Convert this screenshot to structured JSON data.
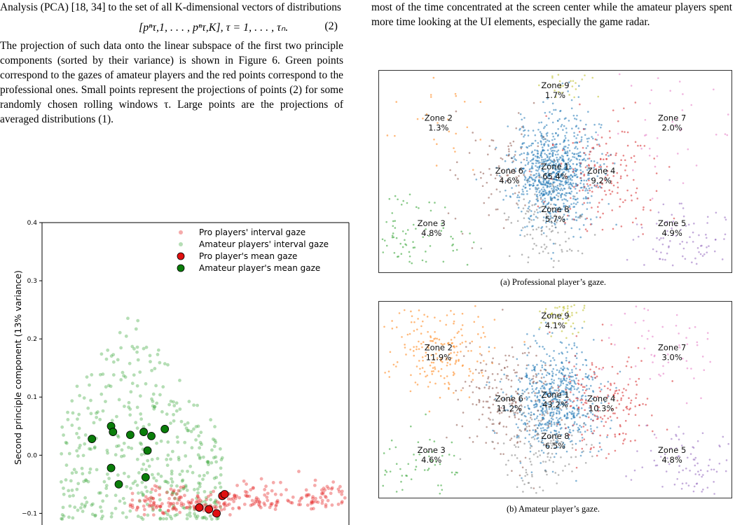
{
  "left_column": {
    "intro_text": "Analysis (PCA) [18, 34] to the set of all K-dimensional vectors of distributions",
    "equation": "[pⁿτ,1, . . . , pⁿτ,K],    τ = 1, . . . , τₙ.",
    "equation_number": "(2)",
    "paragraph": "The projection of such data onto the linear subspace of the first two principle components (sorted by their variance) is shown in Figure 6. Green points correspond to the gazes of amateur players and the red points correspond to the professional ones. Small points represent the projections of points (2) for some randomly chosen rolling windows τ. Large points are the projections of averaged distributions (1)."
  },
  "right_column": {
    "paragraph": "most of the time concentrated at the screen center while the amateur players spent more time looking at the UI elements, especially the game radar."
  },
  "colors": {
    "pro": "#e52b2b",
    "amateur": "#2ca02c",
    "zone1": "#1f77b4",
    "zone2": "#ff7f0e",
    "zone3": "#2ca02c",
    "zone4": "#d62728",
    "zone5": "#9467bd",
    "zone6": "#8c564b",
    "zone7": "#e377c2",
    "zone8": "#7f7f7f",
    "zone9": "#bcbd22"
  },
  "chart_data": [
    {
      "type": "scatter",
      "ylabel": "Second principle component (13% variance)",
      "ylim": [
        -0.12,
        0.4
      ],
      "xlim": [
        -0.33,
        0.47
      ],
      "yticks": [
        "0.4",
        "0.3",
        "0.2",
        "0.1",
        "0.0",
        "−0.1"
      ],
      "legend_position": "top-right",
      "legend": [
        "Pro players' interval gaze",
        "Amateur players' interval gaze",
        "Pro player's mean gaze",
        "Amateur player's mean gaze"
      ],
      "series": [
        {
          "name": "Pro player's mean gaze",
          "points": [
            [
              0.08,
              -0.09
            ],
            [
              0.105,
              -0.093
            ],
            [
              0.125,
              -0.1
            ],
            [
              0.14,
              -0.07
            ],
            [
              0.146,
              -0.067
            ]
          ]
        },
        {
          "name": "Amateur player's mean gaze",
          "points": [
            [
              -0.2,
              0.028
            ],
            [
              -0.15,
              0.05
            ],
            [
              -0.145,
              0.04
            ],
            [
              -0.1,
              0.035
            ],
            [
              -0.065,
              0.04
            ],
            [
              -0.045,
              0.033
            ],
            [
              -0.01,
              0.045
            ],
            [
              -0.055,
              0.008
            ],
            [
              -0.15,
              -0.022
            ],
            [
              -0.13,
              -0.05
            ],
            [
              -0.06,
              -0.038
            ]
          ]
        }
      ]
    },
    {
      "type": "scatter",
      "caption": "(a) Professional player’s gaze.",
      "zones": [
        {
          "label": "Zone 1",
          "pct": "65.4%"
        },
        {
          "label": "Zone 2",
          "pct": "1.3%"
        },
        {
          "label": "Zone 3",
          "pct": "4.8%"
        },
        {
          "label": "Zone 4",
          "pct": "9.2%"
        },
        {
          "label": "Zone 5",
          "pct": "4.9%"
        },
        {
          "label": "Zone 6",
          "pct": "4.6%"
        },
        {
          "label": "Zone 7",
          "pct": "2.0%"
        },
        {
          "label": "Zone 8",
          "pct": "5.7%"
        },
        {
          "label": "Zone 9",
          "pct": "1.7%"
        }
      ]
    },
    {
      "type": "scatter",
      "caption": "(b) Amateur player’s gaze.",
      "zones": [
        {
          "label": "Zone 1",
          "pct": "43.2%"
        },
        {
          "label": "Zone 2",
          "pct": "11.9%"
        },
        {
          "label": "Zone 3",
          "pct": "4.6%"
        },
        {
          "label": "Zone 4",
          "pct": "10.3%"
        },
        {
          "label": "Zone 5",
          "pct": "4.8%"
        },
        {
          "label": "Zone 6",
          "pct": "11.2%"
        },
        {
          "label": "Zone 7",
          "pct": "3.0%"
        },
        {
          "label": "Zone 8",
          "pct": "6.5%"
        },
        {
          "label": "Zone 9",
          "pct": "4.1%"
        }
      ]
    }
  ]
}
